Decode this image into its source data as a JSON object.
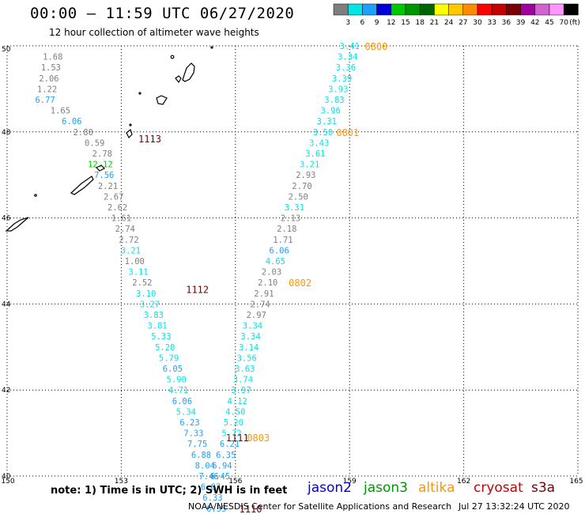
{
  "header": {
    "title": "00:00 – 11:59 UTC 06/27/2020",
    "subtitle": "12 hour collection of altimeter wave heights"
  },
  "colorbar": {
    "unit": "(ft)",
    "bins": [
      {
        "color": "#7f7f7f",
        "label": "3"
      },
      {
        "color": "#00e5e5",
        "label": "6"
      },
      {
        "color": "#1ea0ff",
        "label": "9"
      },
      {
        "color": "#0000dd",
        "label": "12"
      },
      {
        "color": "#00c800",
        "label": "15"
      },
      {
        "color": "#009600",
        "label": "18"
      },
      {
        "color": "#006400",
        "label": "21"
      },
      {
        "color": "#ffff00",
        "label": "24"
      },
      {
        "color": "#ffc800",
        "label": "27"
      },
      {
        "color": "#ff8c00",
        "label": "30"
      },
      {
        "color": "#ff0000",
        "label": "33"
      },
      {
        "color": "#c80000",
        "label": "36"
      },
      {
        "color": "#7d0000",
        "label": "39"
      },
      {
        "color": "#a000a0",
        "label": "42"
      },
      {
        "color": "#d264d2",
        "label": "45"
      },
      {
        "color": "#ff96ff",
        "label": "70"
      },
      {
        "color": "#000000",
        "label": ""
      }
    ]
  },
  "footer": {
    "note": "note: 1) Time is in UTC; 2) SWH is in feet",
    "satellites": [
      {
        "name": "jason2",
        "color": "#0000e0"
      },
      {
        "name": "jason3",
        "color": "#009600"
      },
      {
        "name": "altika",
        "color": "#ff9600"
      },
      {
        "name": "cryosat",
        "color": "#c80000"
      },
      {
        "name": "s3a",
        "color": "#7d0000"
      }
    ],
    "credit": "NOAA/NESDIS Center for Satellite Applications and Research",
    "timestamp": "Jul 27 13:32:24 UTC 2020"
  },
  "chart_data": {
    "type": "scatter",
    "xlim": [
      150,
      165
    ],
    "ylim": [
      40,
      50
    ],
    "x_ticks": [
      "150",
      "153",
      "156",
      "159",
      "162",
      "165"
    ],
    "y_ticks": [
      "40",
      "42",
      "44",
      "46",
      "48",
      "50"
    ],
    "grid": true,
    "colors": {
      "3": "#7f7f7f",
      "6": "#00e5e5",
      "15": "#00c800",
      "altika": "#ff9600",
      "s3a": "#7d0000"
    },
    "tracks": [
      {
        "satellite": "s3a",
        "points": [
          {
            "x": 151.2,
            "y": 49.75,
            "v": "1.68"
          },
          {
            "x": 151.15,
            "y": 49.5,
            "v": "1.53"
          },
          {
            "x": 151.1,
            "y": 49.25,
            "v": "2.06"
          },
          {
            "x": 151.05,
            "y": 49.0,
            "v": "1.22"
          },
          {
            "x": 151.0,
            "y": 48.75,
            "v": "6.77"
          },
          {
            "x": 151.4,
            "y": 48.5,
            "v": "1.65"
          },
          {
            "x": 151.7,
            "y": 48.25,
            "v": "6.06"
          },
          {
            "x": 152.0,
            "y": 48.0,
            "v": "2.80"
          },
          {
            "x": 152.3,
            "y": 47.75,
            "v": "0.59"
          },
          {
            "x": 152.5,
            "y": 47.5,
            "v": "2.78"
          },
          {
            "x": 152.45,
            "y": 47.25,
            "v": "12.12"
          },
          {
            "x": 152.55,
            "y": 47.0,
            "v": "7.56"
          },
          {
            "x": 152.65,
            "y": 46.75,
            "v": "2.21"
          },
          {
            "x": 152.8,
            "y": 46.5,
            "v": "2.67"
          },
          {
            "x": 152.9,
            "y": 46.25,
            "v": "2.62"
          },
          {
            "x": 153.0,
            "y": 46.0,
            "v": "1.61"
          },
          {
            "x": 153.1,
            "y": 45.75,
            "v": "2.74"
          },
          {
            "x": 153.2,
            "y": 45.5,
            "v": "2.72"
          },
          {
            "x": 153.25,
            "y": 45.25,
            "v": "3.21"
          },
          {
            "x": 153.35,
            "y": 45.0,
            "v": "1.00"
          },
          {
            "x": 153.45,
            "y": 44.75,
            "v": "3.11"
          },
          {
            "x": 153.55,
            "y": 44.5,
            "v": "2.52"
          },
          {
            "x": 153.65,
            "y": 44.25,
            "v": "3.10"
          },
          {
            "x": 153.75,
            "y": 44.0,
            "v": "3.27"
          },
          {
            "x": 153.85,
            "y": 43.75,
            "v": "3.83"
          },
          {
            "x": 153.95,
            "y": 43.5,
            "v": "3.81"
          },
          {
            "x": 154.05,
            "y": 43.25,
            "v": "5.33"
          },
          {
            "x": 154.15,
            "y": 43.0,
            "v": "5.20"
          },
          {
            "x": 154.25,
            "y": 42.75,
            "v": "5.79"
          },
          {
            "x": 154.35,
            "y": 42.5,
            "v": "6.05"
          },
          {
            "x": 154.45,
            "y": 42.25,
            "v": "5.90"
          },
          {
            "x": 154.5,
            "y": 42.0,
            "v": "4.71"
          },
          {
            "x": 154.6,
            "y": 41.75,
            "v": "6.06"
          },
          {
            "x": 154.7,
            "y": 41.5,
            "v": "5.34"
          },
          {
            "x": 154.8,
            "y": 41.25,
            "v": "6.23"
          },
          {
            "x": 154.9,
            "y": 41.0,
            "v": "7.33"
          },
          {
            "x": 155.0,
            "y": 40.75,
            "v": "7.75"
          },
          {
            "x": 155.1,
            "y": 40.5,
            "v": "6.88"
          },
          {
            "x": 155.2,
            "y": 40.25,
            "v": "8.04"
          },
          {
            "x": 155.3,
            "y": 40.0,
            "v": "7.46"
          },
          {
            "x": 155.35,
            "y": 39.75,
            "v": "6.87"
          },
          {
            "x": 155.4,
            "y": 39.5,
            "v": "6.33"
          },
          {
            "x": 155.5,
            "y": 39.25,
            "v": "6.55"
          }
        ],
        "labels": [
          {
            "x": 153.45,
            "y": 47.85,
            "v": "1113"
          },
          {
            "x": 154.7,
            "y": 44.35,
            "v": "1112"
          },
          {
            "x": 155.75,
            "y": 40.9,
            "v": "1111"
          },
          {
            "x": 156.1,
            "y": 39.25,
            "v": "1110"
          }
        ]
      },
      {
        "satellite": "altika",
        "points": [
          {
            "x": 159.0,
            "y": 50.0,
            "v": "3.41"
          },
          {
            "x": 158.95,
            "y": 49.75,
            "v": "3.34"
          },
          {
            "x": 158.9,
            "y": 49.5,
            "v": "3.36"
          },
          {
            "x": 158.8,
            "y": 49.25,
            "v": "3.39"
          },
          {
            "x": 158.7,
            "y": 49.0,
            "v": "3.93"
          },
          {
            "x": 158.6,
            "y": 48.75,
            "v": "3.83"
          },
          {
            "x": 158.5,
            "y": 48.5,
            "v": "3.96"
          },
          {
            "x": 158.4,
            "y": 48.25,
            "v": "3.31"
          },
          {
            "x": 158.3,
            "y": 48.0,
            "v": "3.50"
          },
          {
            "x": 158.2,
            "y": 47.75,
            "v": "3.43"
          },
          {
            "x": 158.1,
            "y": 47.5,
            "v": "3.61"
          },
          {
            "x": 157.95,
            "y": 47.25,
            "v": "3.21"
          },
          {
            "x": 157.85,
            "y": 47.0,
            "v": "2.93"
          },
          {
            "x": 157.75,
            "y": 46.75,
            "v": "2.70"
          },
          {
            "x": 157.65,
            "y": 46.5,
            "v": "2.50"
          },
          {
            "x": 157.55,
            "y": 46.25,
            "v": "3.31"
          },
          {
            "x": 157.45,
            "y": 46.0,
            "v": "2.13"
          },
          {
            "x": 157.35,
            "y": 45.75,
            "v": "2.18"
          },
          {
            "x": 157.25,
            "y": 45.5,
            "v": "1.71"
          },
          {
            "x": 157.15,
            "y": 45.25,
            "v": "6.06"
          },
          {
            "x": 157.05,
            "y": 45.0,
            "v": "4.65"
          },
          {
            "x": 156.95,
            "y": 44.75,
            "v": "2.03"
          },
          {
            "x": 156.85,
            "y": 44.5,
            "v": "2.10"
          },
          {
            "x": 156.75,
            "y": 44.25,
            "v": "2.91"
          },
          {
            "x": 156.65,
            "y": 44.0,
            "v": "2.74"
          },
          {
            "x": 156.55,
            "y": 43.75,
            "v": "2.97"
          },
          {
            "x": 156.45,
            "y": 43.5,
            "v": "3.34"
          },
          {
            "x": 156.4,
            "y": 43.25,
            "v": "3.34"
          },
          {
            "x": 156.35,
            "y": 43.0,
            "v": "3.14"
          },
          {
            "x": 156.3,
            "y": 42.75,
            "v": "3.56"
          },
          {
            "x": 156.25,
            "y": 42.5,
            "v": "3.63"
          },
          {
            "x": 156.2,
            "y": 42.25,
            "v": "3.74"
          },
          {
            "x": 156.15,
            "y": 42.0,
            "v": "3.97"
          },
          {
            "x": 156.05,
            "y": 41.75,
            "v": "4.12"
          },
          {
            "x": 156.0,
            "y": 41.5,
            "v": "4.50"
          },
          {
            "x": 155.95,
            "y": 41.25,
            "v": "5.20"
          },
          {
            "x": 155.9,
            "y": 41.0,
            "v": "5.72"
          },
          {
            "x": 155.85,
            "y": 40.75,
            "v": "6.21"
          },
          {
            "x": 155.75,
            "y": 40.5,
            "v": "6.35"
          },
          {
            "x": 155.65,
            "y": 40.25,
            "v": "6.94"
          },
          {
            "x": 155.6,
            "y": 40.0,
            "v": "6.45"
          }
        ],
        "labels": [
          {
            "x": 159.4,
            "y": 50.0,
            "v": "0800"
          },
          {
            "x": 158.65,
            "y": 48.0,
            "v": "0801"
          },
          {
            "x": 157.4,
            "y": 44.5,
            "v": "0802"
          },
          {
            "x": 156.3,
            "y": 40.9,
            "v": "0803"
          }
        ]
      }
    ]
  }
}
